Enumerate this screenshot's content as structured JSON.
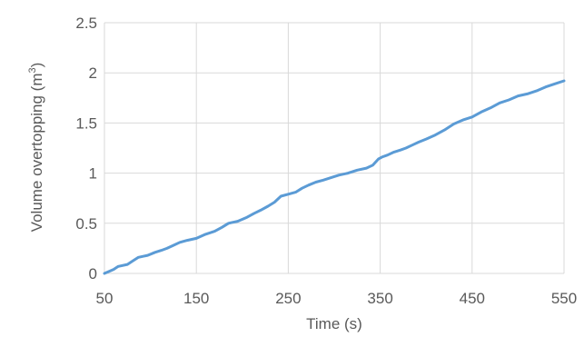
{
  "chart_data": {
    "type": "line",
    "title": "",
    "xlabel": "Time (s)",
    "ylabel": "Volume overtopping (m",
    "ylabel_superscript": "3",
    "ylabel_suffix": ")",
    "xlim": [
      50,
      550
    ],
    "ylim": [
      0,
      2.5
    ],
    "x_ticks": [
      "50",
      "150",
      "250",
      "350",
      "450",
      "550"
    ],
    "y_ticks": [
      "0",
      "0.5",
      "1",
      "1.5",
      "2",
      "2.5"
    ],
    "grid": true,
    "legend": "none",
    "colors": {
      "series": "#5b9bd5",
      "grid": "#d9d9d9",
      "text": "#595959"
    },
    "series": [
      {
        "x": [
          50,
          60,
          65,
          75,
          80,
          87,
          92,
          97,
          105,
          112,
          118,
          125,
          132,
          140,
          150,
          160,
          170,
          178,
          185,
          195,
          205,
          213,
          220,
          228,
          235,
          242,
          250,
          258,
          265,
          272,
          280,
          288,
          295,
          305,
          315,
          325,
          335,
          342,
          348,
          352,
          358,
          365,
          372,
          378,
          385,
          392,
          400,
          410,
          420,
          430,
          440,
          450,
          460,
          470,
          480,
          490,
          500,
          510,
          520,
          530,
          540,
          550
        ],
        "y": [
          0.0,
          0.04,
          0.07,
          0.09,
          0.12,
          0.16,
          0.17,
          0.18,
          0.21,
          0.23,
          0.25,
          0.28,
          0.31,
          0.33,
          0.35,
          0.39,
          0.42,
          0.46,
          0.5,
          0.52,
          0.56,
          0.6,
          0.63,
          0.67,
          0.71,
          0.77,
          0.79,
          0.81,
          0.85,
          0.88,
          0.91,
          0.93,
          0.95,
          0.98,
          1.0,
          1.03,
          1.05,
          1.08,
          1.14,
          1.16,
          1.18,
          1.21,
          1.23,
          1.25,
          1.28,
          1.31,
          1.34,
          1.38,
          1.43,
          1.49,
          1.53,
          1.56,
          1.61,
          1.65,
          1.7,
          1.73,
          1.77,
          1.79,
          1.82,
          1.86,
          1.89,
          1.92
        ]
      }
    ]
  }
}
